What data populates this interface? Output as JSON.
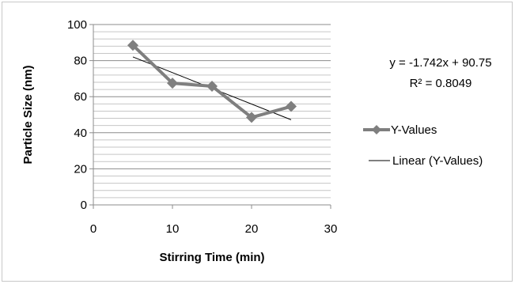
{
  "chart_data": {
    "type": "scatter",
    "xlabel": "Stirring Time (min)",
    "ylabel": "Particle Size (nm)",
    "xlim": [
      0,
      30
    ],
    "ylim": [
      0,
      100
    ],
    "x_ticks": [
      "0",
      "10",
      "20",
      "30"
    ],
    "y_ticks": [
      "0",
      "20",
      "40",
      "60",
      "80",
      "100"
    ],
    "grid": "horizontal major and minor gridlines",
    "legend_position": "right",
    "series": [
      {
        "name": "Y-Values",
        "color": "#7f7f7f",
        "marker": "diamond",
        "x": [
          5,
          10,
          15,
          20,
          25
        ],
        "y": [
          88.5,
          67.5,
          65.8,
          48.5,
          54.6
        ]
      }
    ],
    "trendline": {
      "name": "Linear (Y-Values)",
      "color": "#000000",
      "slope": -1.742,
      "intercept": 90.75,
      "x_range": [
        5,
        25
      ]
    },
    "annotations": {
      "equation": "y = -1.742x + 90.75",
      "r_squared": "R² = 0.8049"
    }
  }
}
